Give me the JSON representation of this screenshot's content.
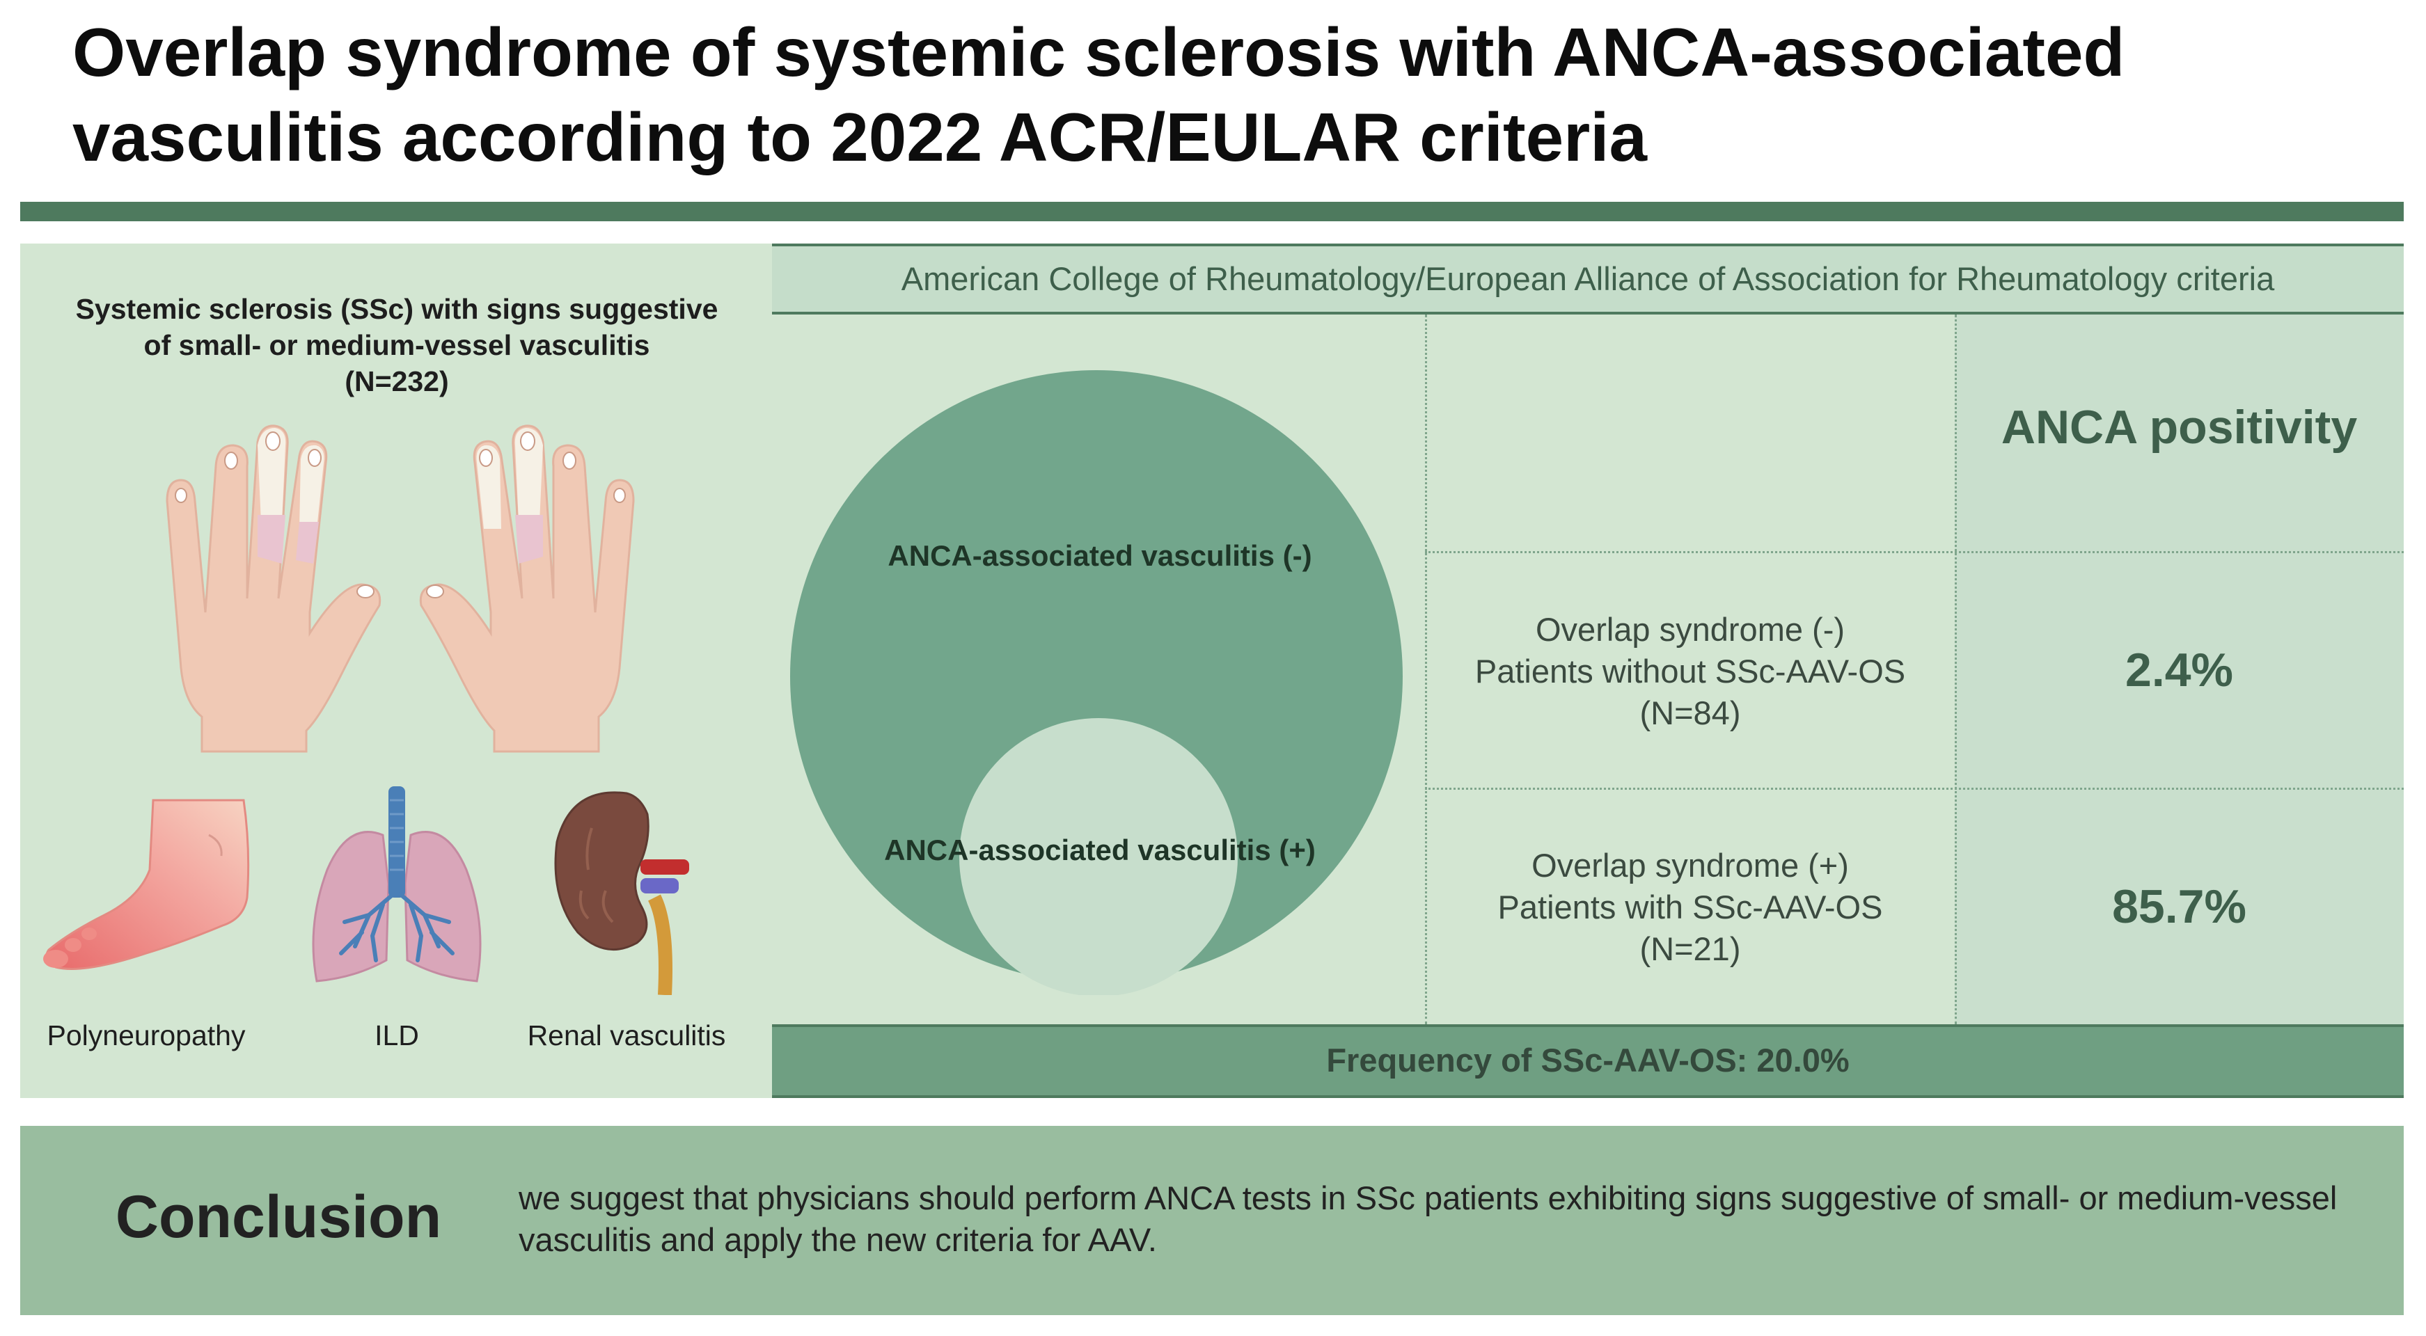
{
  "title": "Overlap syndrome of systemic sclerosis with ANCA-associated vasculitis according to 2022 ACR/EULAR criteria",
  "left_panel": {
    "heading_line1": "Systemic sclerosis (SSc) with signs suggestive",
    "heading_line2": "of small- or medium-vessel vasculitis",
    "heading_line3": "(N=232)",
    "organs": [
      "Polyneuropathy",
      "ILD",
      "Renal vasculitis"
    ]
  },
  "criteria": {
    "header": "American College of Rheumatology/European Alliance of Association for Rheumatology criteria",
    "outer_circle_label": "ANCA-associated vasculitis (-)",
    "inner_circle_label": "ANCA-associated vasculitis (+)",
    "anca_header": "ANCA positivity",
    "rows": [
      {
        "line1": "Overlap syndrome (-)",
        "line2": "Patients without SSc-AAV-OS",
        "line3": "(N=84)",
        "anca": "2.4%"
      },
      {
        "line1": "Overlap syndrome (+)",
        "line2": "Patients with SSc-AAV-OS",
        "line3": "(N=21)",
        "anca": "85.7%"
      }
    ],
    "frequency": "Frequency of SSc-AAV-OS: 20.0%"
  },
  "conclusion": {
    "title": "Conclusion",
    "text": "we suggest that physicians should perform ANCA tests in SSc patients exhibiting signs suggestive of small- or medium-vessel vasculitis and apply the new criteria for AAV."
  },
  "colors": {
    "dark_green": "#4e7a5e",
    "circle_green": "#72a68c",
    "panel_green": "#d3e6d2",
    "conclusion_green": "#99bd9f"
  },
  "icons": [
    "hand-left-icon",
    "hand-right-icon",
    "foot-icon",
    "lungs-icon",
    "kidney-icon"
  ]
}
